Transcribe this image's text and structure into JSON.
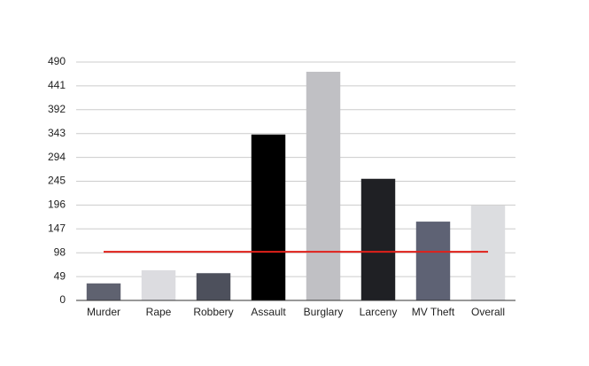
{
  "chart_data": {
    "type": "bar",
    "categories": [
      "Murder",
      "Rape",
      "Robbery",
      "Assault",
      "Burglary",
      "Larceny",
      "MV Theft",
      "Overall"
    ],
    "values": [
      35,
      62,
      56,
      341,
      470,
      250,
      162,
      195
    ],
    "colors": [
      "#5f6270",
      "#dcdce0",
      "#4d505c",
      "#000000",
      "#c0c0c4",
      "#1f2024",
      "#5e6274",
      "#dcdde0"
    ],
    "reference_line": {
      "value": 100,
      "color": "#e0201a"
    },
    "ylim": [
      0,
      490
    ],
    "yticks": [
      0,
      49,
      98,
      147,
      196,
      245,
      294,
      343,
      392,
      441,
      490
    ],
    "grid": true
  }
}
